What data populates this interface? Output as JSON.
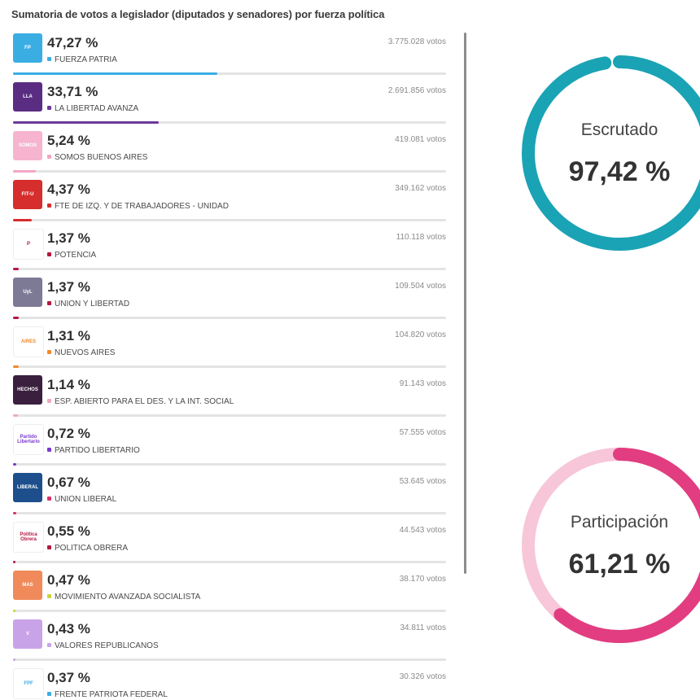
{
  "title": "Sumatoria de votos a legislador (diputados y senadores) por fuerza política",
  "parties": [
    {
      "pct": "47,27 %",
      "share": 47.27,
      "name": "FUERZA PATRIA",
      "votes": "3.775.028 votos",
      "color": "#3aaee3",
      "logo_bg": "#3aaee3",
      "logo_text": "FP",
      "icon": "fuerza-patria-logo-icon"
    },
    {
      "pct": "33,71 %",
      "share": 33.71,
      "name": "LA LIBERTAD AVANZA",
      "votes": "2.691.856 votos",
      "color": "#6a3a9a",
      "logo_bg": "#5a2d83",
      "logo_text": "LLA",
      "icon": "la-libertad-avanza-logo-icon"
    },
    {
      "pct": "5,24 %",
      "share": 5.24,
      "name": "SOMOS BUENOS AIRES",
      "votes": "419.081 votos",
      "color": "#f2a6c4",
      "logo_bg": "#f6b4cf",
      "logo_text": "SOMOS",
      "icon": "somos-logo-icon"
    },
    {
      "pct": "4,37 %",
      "share": 4.37,
      "name": "FTE DE IZQ. Y DE TRABAJADORES - UNIDAD",
      "votes": "349.162 votos",
      "color": "#d62d2d",
      "logo_bg": "#d62d2d",
      "logo_text": "FIT-U",
      "icon": "fit-unidad-logo-icon"
    },
    {
      "pct": "1,37 %",
      "share": 1.37,
      "name": "POTENCIA",
      "votes": "110.118 votos",
      "color": "#b5163f",
      "logo_bg": "#ffffff",
      "logo_text": "P",
      "icon": "potencia-logo-icon"
    },
    {
      "pct": "1,37 %",
      "share": 1.37,
      "name": "UNION Y LIBERTAD",
      "votes": "109.504 votos",
      "color": "#b5163f",
      "logo_bg": "#7d7a96",
      "logo_text": "UyL",
      "icon": "union-y-libertad-logo-icon"
    },
    {
      "pct": "1,31 %",
      "share": 1.31,
      "name": "NUEVOS AIRES",
      "votes": "104.820 votos",
      "color": "#f08a2a",
      "logo_bg": "#ffffff",
      "logo_text": "AIRES",
      "icon": "nuevos-aires-logo-icon"
    },
    {
      "pct": "1,14 %",
      "share": 1.14,
      "name": "ESP. ABIERTO PARA EL DES. Y LA INT. SOCIAL",
      "votes": "91.143 votos",
      "color": "#f2a6c4",
      "logo_bg": "#3a1f3f",
      "logo_text": "HECHOS",
      "icon": "espacio-abierto-logo-icon"
    },
    {
      "pct": "0,72 %",
      "share": 0.72,
      "name": "PARTIDO LIBERTARIO",
      "votes": "57.555 votos",
      "color": "#7a3ad0",
      "logo_bg": "#ffffff",
      "logo_text": "Partido Libertario",
      "icon": "partido-libertario-logo-icon"
    },
    {
      "pct": "0,67 %",
      "share": 0.67,
      "name": "UNION LIBERAL",
      "votes": "53.645 votos",
      "color": "#d6336c",
      "logo_bg": "#1d4f8c",
      "logo_text": "LIBERAL",
      "icon": "union-liberal-logo-icon"
    },
    {
      "pct": "0,55 %",
      "share": 0.55,
      "name": "POLITICA OBRERA",
      "votes": "44.543 votos",
      "color": "#b5163f",
      "logo_bg": "#ffffff",
      "logo_text": "Política Obrera",
      "icon": "politica-obrera-logo-icon"
    },
    {
      "pct": "0,47 %",
      "share": 0.47,
      "name": "MOVIMIENTO AVANZADA SOCIALISTA",
      "votes": "38.170 votos",
      "color": "#c8d43a",
      "logo_bg": "#f08a5a",
      "logo_text": "MAS",
      "icon": "mas-logo-icon"
    },
    {
      "pct": "0,43 %",
      "share": 0.43,
      "name": "VALORES REPUBLICANOS",
      "votes": "34.811 votos",
      "color": "#c7a6e6",
      "logo_bg": "#c9a3e8",
      "logo_text": "V",
      "icon": "valores-republicanos-logo-icon"
    },
    {
      "pct": "0,37 %",
      "share": 0.37,
      "name": "FRENTE PATRIOTA FEDERAL",
      "votes": "30.326 votos",
      "color": "#3aaee3",
      "logo_bg": "#ffffff",
      "logo_text": "FPF",
      "icon": "frente-patriota-federal-logo-icon"
    }
  ],
  "gauges": {
    "escrutado": {
      "label": "Escrutado",
      "value": "97,42 %",
      "fraction": 0.9742,
      "color": "#1aa3b4",
      "track": "#1aa3b4"
    },
    "participacion": {
      "label": "Participación",
      "value": "61,21 %",
      "fraction": 0.6121,
      "color": "#e23d80",
      "track": "#f7c6d9"
    }
  }
}
